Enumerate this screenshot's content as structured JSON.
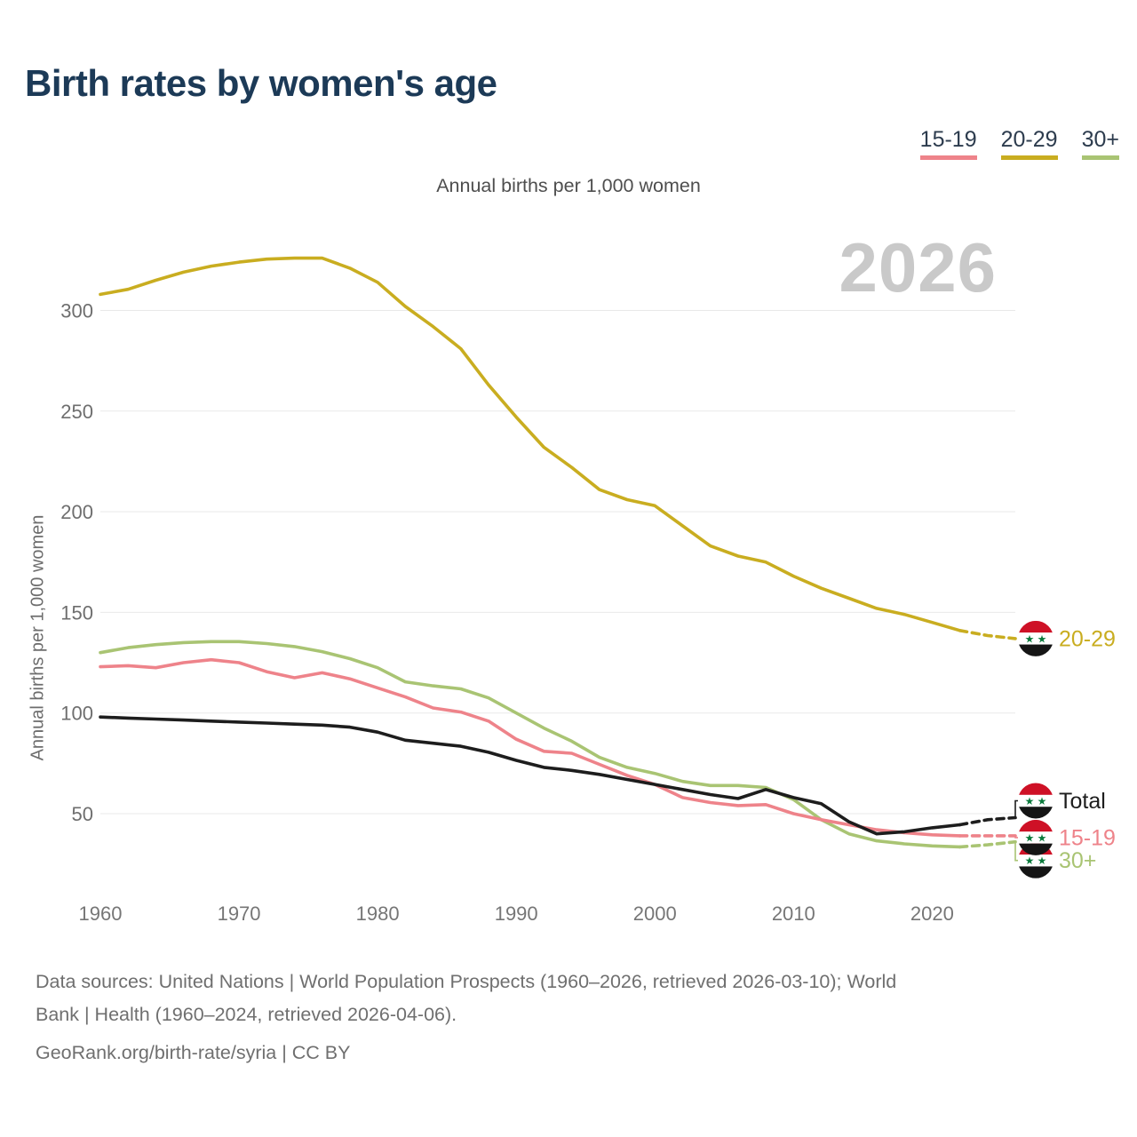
{
  "header": {
    "title": "Birth rates by women's age"
  },
  "subtitle": "Annual births per 1,000 women",
  "y_axis_label": "Annual births per 1,000 women",
  "watermark": "2026",
  "legend": {
    "items": [
      {
        "label": "15-19",
        "color": "#ee838a"
      },
      {
        "label": "20-29",
        "color": "#c9ad20"
      },
      {
        "label": "30+",
        "color": "#a9c473"
      }
    ]
  },
  "footer": {
    "lines": [
      "Data sources: United Nations | World Population Prospects (1960–2026, retrieved 2026-03-10); World",
      "Bank | Health (1960–2024, retrieved 2026-04-06).",
      "GeoRank.org/birth-rate/syria | CC BY"
    ]
  },
  "flag": {
    "name": "syria-flag",
    "red": "#ce1126",
    "white": "#ffffff",
    "black": "#151515",
    "star_green": "#0a7a3c"
  },
  "chart_data": {
    "type": "line",
    "title": "Birth rates by women's age",
    "subtitle": "Annual births per 1,000 women",
    "ylabel": "Annual births per 1,000 women",
    "xlabel": "",
    "unit": "annual births per 1,000 women",
    "grid": "horizontal",
    "legend_position": "top-right",
    "watermark_year": "2026",
    "ylim": [
      15,
      332
    ],
    "yticks": [
      50,
      100,
      150,
      200,
      250,
      300
    ],
    "xticks": [
      1960,
      1970,
      1980,
      1990,
      2000,
      2010,
      2020
    ],
    "projection_dashed_from": 2022,
    "x": [
      1960,
      1962,
      1964,
      1966,
      1968,
      1970,
      1972,
      1974,
      1976,
      1978,
      1980,
      1982,
      1984,
      1986,
      1988,
      1990,
      1992,
      1994,
      1996,
      1998,
      2000,
      2002,
      2004,
      2006,
      2008,
      2010,
      2012,
      2014,
      2016,
      2018,
      2020,
      2022,
      2024,
      2026
    ],
    "series": [
      {
        "name": "20-29",
        "color": "#c9ad20",
        "end_label": "20-29",
        "values": [
          308,
          310.5,
          315,
          319,
          322,
          324,
          325.5,
          326,
          326,
          321,
          314,
          302,
          292,
          281,
          263,
          247,
          232,
          222,
          211,
          206,
          203,
          193,
          183,
          178,
          175,
          168,
          162,
          157,
          152,
          149,
          145,
          141,
          138.5,
          137
        ]
      },
      {
        "name": "30+",
        "color": "#a9c473",
        "end_label": "30+",
        "values": [
          130,
          132.5,
          134,
          135,
          135.5,
          135.5,
          134.5,
          133,
          130.5,
          127,
          122.5,
          115.5,
          113.5,
          112,
          107.5,
          100,
          92.5,
          86,
          78,
          73,
          70,
          66,
          64,
          64,
          63,
          57,
          47,
          40,
          36.5,
          35,
          34,
          33.5,
          34.5,
          36
        ]
      },
      {
        "name": "15-19",
        "color": "#ee838a",
        "end_label": "15-19",
        "values": [
          123,
          123.5,
          122.5,
          125,
          126.5,
          125,
          120.5,
          117.5,
          120,
          117,
          112.5,
          108,
          102.5,
          100.5,
          96,
          87,
          81,
          80,
          74.5,
          69,
          64.5,
          58,
          55.5,
          54,
          54.5,
          50,
          47,
          44.5,
          42,
          40.5,
          39.5,
          39,
          39,
          39
        ]
      },
      {
        "name": "Total",
        "color": "#1d1d1d",
        "end_label": "Total",
        "values": [
          98,
          97.5,
          97,
          96.5,
          96,
          95.5,
          95,
          94.5,
          94,
          93,
          90.5,
          86.5,
          85,
          83.5,
          80.5,
          76.5,
          73,
          71.5,
          69.5,
          67,
          64.5,
          62,
          59.5,
          57.5,
          62,
          58,
          55,
          46,
          40,
          41,
          43,
          44.5,
          47,
          48
        ]
      }
    ]
  }
}
